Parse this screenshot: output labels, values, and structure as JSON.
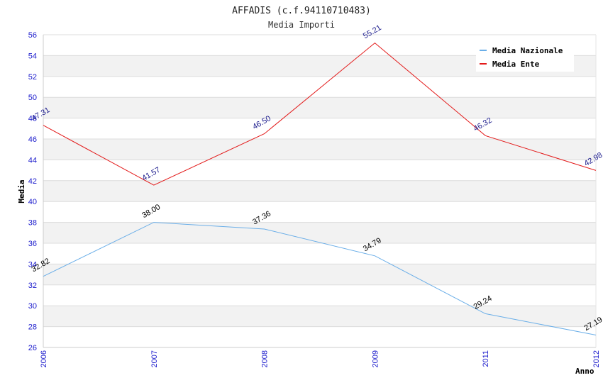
{
  "chart_data": {
    "type": "line",
    "title": "AFFADIS (c.f.94110710483)",
    "subtitle": "Media Importi",
    "xlabel": "Anno",
    "ylabel": "Media",
    "categories": [
      "2006",
      "2007",
      "2008",
      "2009",
      "2011",
      "2012"
    ],
    "ylim": [
      26,
      56
    ],
    "yticks": [
      26,
      28,
      30,
      32,
      34,
      36,
      38,
      40,
      42,
      44,
      46,
      48,
      50,
      52,
      54,
      56
    ],
    "grid": true,
    "legend_position": "top-right",
    "series": [
      {
        "name": "Media Nazionale",
        "color": "#6aaee8",
        "label_color": "#000000",
        "values": [
          32.82,
          38.0,
          37.36,
          34.79,
          29.24,
          27.19
        ],
        "labels": [
          "32.82",
          "38.00",
          "37.36",
          "34.79",
          "29.24",
          "27.19"
        ]
      },
      {
        "name": "Media Ente",
        "color": "#e31a1a",
        "label_color": "#1a1a8c",
        "values": [
          47.31,
          41.57,
          46.5,
          55.21,
          46.32,
          42.98
        ],
        "labels": [
          "47.31",
          "41.57",
          "46.50",
          "55.21",
          "46.32",
          "42.98"
        ]
      }
    ]
  }
}
